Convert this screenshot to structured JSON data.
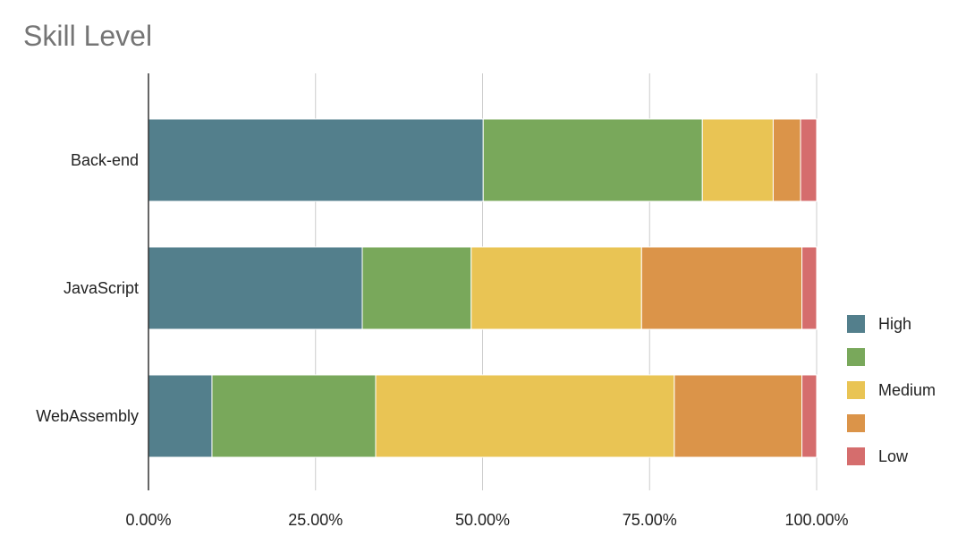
{
  "chart_data": {
    "type": "bar",
    "orientation": "horizontal",
    "stacked": "percent",
    "title": "Skill Level",
    "xlabel": "",
    "ylabel": "",
    "xlim": [
      0,
      100
    ],
    "x_ticks": [
      "0.00%",
      "25.00%",
      "50.00%",
      "75.00%",
      "100.00%"
    ],
    "grid": true,
    "legend_position": "right",
    "categories": [
      "Back-end",
      "JavaScript",
      "WebAssembly"
    ],
    "series": [
      {
        "name": "High",
        "color": "#537f8c",
        "values": [
          50.1,
          32.0,
          9.5
        ]
      },
      {
        "name": "",
        "color": "#79a85b",
        "values": [
          32.8,
          16.3,
          24.5
        ]
      },
      {
        "name": "Medium",
        "color": "#e9c454",
        "values": [
          10.6,
          25.5,
          44.7
        ]
      },
      {
        "name": "",
        "color": "#db9449",
        "values": [
          4.1,
          24.0,
          19.1
        ]
      },
      {
        "name": "Low",
        "color": "#d56d6d",
        "values": [
          2.4,
          2.2,
          2.2
        ]
      }
    ]
  }
}
